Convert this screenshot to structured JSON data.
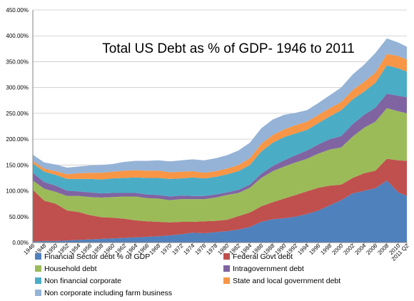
{
  "chart_data": {
    "type": "area",
    "stacked": true,
    "title": "Total US Debt as % of GDP- 1946 to 2011",
    "xlabel": "",
    "ylabel": "",
    "ylim": [
      0,
      450
    ],
    "y_ticks": [
      "0.00%",
      "50.00%",
      "100.00%",
      "150.00%",
      "200.00%",
      "250.00%",
      "300.00%",
      "350.00%",
      "400.00%",
      "450.00%"
    ],
    "x_tick_labels": [
      "1946",
      "1948",
      "1950",
      "1952",
      "1954",
      "1956",
      "1958",
      "1960",
      "1962",
      "1964",
      "1966",
      "1968",
      "1970",
      "1972",
      "1974",
      "1976",
      "1978",
      "1980",
      "1982",
      "1984",
      "1986",
      "1988",
      "1990",
      "1992",
      "1994",
      "1996",
      "1998",
      "2000",
      "2002",
      "2004",
      "2006",
      "2008",
      "2010",
      "2011 Q2"
    ],
    "x": [
      1946,
      1948,
      1950,
      1952,
      1954,
      1956,
      1958,
      1960,
      1962,
      1964,
      1966,
      1968,
      1970,
      1972,
      1974,
      1976,
      1978,
      1980,
      1982,
      1984,
      1986,
      1988,
      1990,
      1992,
      1994,
      1996,
      1998,
      2000,
      2002,
      2004,
      2006,
      2008,
      2010,
      2011.5
    ],
    "grid": true,
    "legend_position": "bottom",
    "series": [
      {
        "name": "Financial Sector debt % of GDP",
        "color": "#4f81bd",
        "values": [
          2,
          3,
          3,
          4,
          5,
          6,
          7,
          8,
          9,
          10,
          11,
          12,
          14,
          16,
          19,
          18,
          20,
          22,
          25,
          30,
          40,
          45,
          47,
          50,
          55,
          62,
          72,
          82,
          95,
          100,
          105,
          120,
          97,
          90
        ]
      },
      {
        "name": "Federal Govt debt",
        "color": "#c0504d",
        "values": [
          100,
          78,
          72,
          58,
          54,
          47,
          42,
          40,
          37,
          33,
          30,
          28,
          25,
          24,
          21,
          23,
          22,
          22,
          26,
          28,
          30,
          33,
          38,
          42,
          44,
          44,
          38,
          30,
          30,
          34,
          34,
          42,
          62,
          68
        ]
      },
      {
        "name": "Household debt",
        "color": "#9bbb59",
        "values": [
          18,
          23,
          23,
          28,
          31,
          35,
          38,
          40,
          43,
          46,
          45,
          45,
          43,
          44,
          44,
          43,
          45,
          48,
          45,
          48,
          55,
          60,
          62,
          63,
          63,
          66,
          70,
          72,
          80,
          88,
          95,
          98,
          95,
          92
        ]
      },
      {
        "name": "Intragovernment debt",
        "color": "#8064a2",
        "values": [
          15,
          13,
          12,
          10,
          9,
          9,
          8,
          8,
          7,
          7,
          7,
          7,
          7,
          7,
          6,
          6,
          6,
          5,
          6,
          6,
          8,
          10,
          12,
          14,
          16,
          18,
          20,
          22,
          24,
          25,
          27,
          28,
          30,
          31
        ]
      },
      {
        "name": "Non financial corporate",
        "color": "#4bacc6",
        "values": [
          18,
          20,
          21,
          23,
          24,
          26,
          27,
          28,
          29,
          30,
          32,
          33,
          34,
          33,
          36,
          34,
          34,
          35,
          36,
          38,
          43,
          45,
          45,
          42,
          40,
          41,
          44,
          50,
          48,
          45,
          48,
          55,
          53,
          50
        ]
      },
      {
        "name": "State and local government debt",
        "color": "#f79646",
        "values": [
          5,
          6,
          7,
          9,
          11,
          12,
          13,
          13,
          14,
          14,
          14,
          14,
          13,
          13,
          12,
          11,
          11,
          11,
          12,
          13,
          15,
          15,
          15,
          16,
          16,
          16,
          16,
          16,
          18,
          19,
          20,
          22,
          24,
          23
        ]
      },
      {
        "name": "Non corporate including farm business",
        "color": "#95b3d7",
        "values": [
          12,
          12,
          13,
          13,
          13,
          14,
          15,
          15,
          17,
          18,
          19,
          20,
          21,
          22,
          23,
          24,
          25,
          26,
          28,
          30,
          30,
          30,
          28,
          24,
          22,
          23,
          25,
          28,
          30,
          33,
          38,
          30,
          26,
          25
        ]
      }
    ]
  }
}
